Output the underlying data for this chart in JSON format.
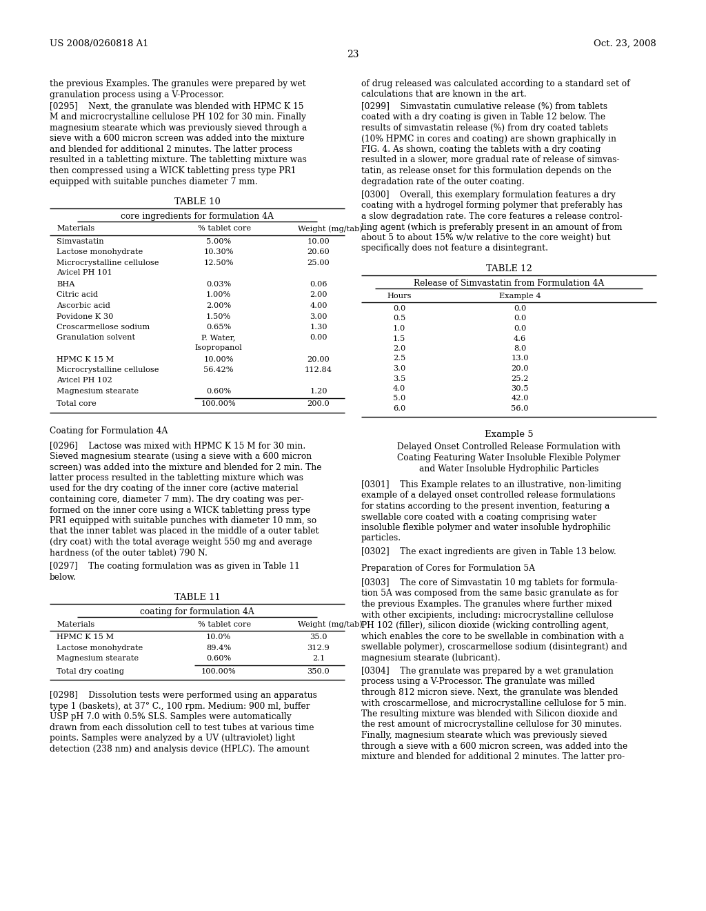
{
  "header_left": "US 2008/0260818 A1",
  "header_right": "Oct. 23, 2008",
  "page_number": "23",
  "background_color": "#ffffff",
  "text_color": "#000000",
  "left_column": {
    "intro_text": "the previous Examples. The granules were prepared by wet\ngranulation process using a V-Processor.",
    "para_0295": "[0295]    Next, the granulate was blended with HPMC K 15\nM and microcrystalline cellulose PH 102 for 30 min. Finally\nmagnesium stearate which was previously sieved through a\nsieve with a 600 micron screen was added into the mixture\nand blended for additional 2 minutes. The latter process\nresulted in a tabletting mixture. The tabletting mixture was\nthen compressed using a WICK tabletting press type PR1\nequipped with suitable punches diameter 7 mm.",
    "table10_title": "TABLE 10",
    "table10_subtitle": "core ingredients for formulation 4A",
    "table10_headers": [
      "Materials",
      "% tablet core",
      "Weight (mg/tab)"
    ],
    "table10_rows": [
      [
        "Simvastatin",
        "5.00%",
        "10.00"
      ],
      [
        "Lactose monohydrate",
        "10.30%",
        "20.60"
      ],
      [
        "Microcrystalline cellulose\nAvicel PH 101",
        "12.50%",
        "25.00"
      ],
      [
        "BHA",
        "0.03%",
        "0.06"
      ],
      [
        "Citric acid",
        "1.00%",
        "2.00"
      ],
      [
        "Ascorbic acid",
        "2.00%",
        "4.00"
      ],
      [
        "Povidone K 30",
        "1.50%",
        "3.00"
      ],
      [
        "Croscarmellose sodium",
        "0.65%",
        "1.30"
      ],
      [
        "Granulation solvent",
        "P. Water,\nIsopropanol",
        "0.00"
      ],
      [
        "HPMC K 15 M",
        "10.00%",
        "20.00"
      ],
      [
        "Microcrystalline cellulose\nAvicel PH 102",
        "56.42%",
        "112.84"
      ],
      [
        "Magnesium stearate",
        "0.60%",
        "1.20"
      ],
      [
        "Total core",
        "100.00%",
        "200.0"
      ]
    ],
    "coating_header": "Coating for Formulation 4A",
    "para_0296": "[0296]    Lactose was mixed with HPMC K 15 M for 30 min.\nSieved magnesium stearate (using a sieve with a 600 micron\nscreen) was added into the mixture and blended for 2 min. The\nlatter process resulted in the tabletting mixture which was\nused for the dry coating of the inner core (active material\ncontaining core, diameter 7 mm). The dry coating was per-\nformed on the inner core using a WICK tabletting press type\nPR1 equipped with suitable punches with diameter 10 mm, so\nthat the inner tablet was placed in the middle of a outer tablet\n(dry coat) with the total average weight 550 mg and average\nhardness (of the outer tablet) 790 N.",
    "para_0297": "[0297]    The coating formulation was as given in Table 11\nbelow.",
    "table11_title": "TABLE 11",
    "table11_subtitle": "coating for formulation 4A",
    "table11_headers": [
      "Materials",
      "% tablet core",
      "Weight (mg/tab)"
    ],
    "table11_rows": [
      [
        "HPMC K 15 M",
        "10.0%",
        "35.0"
      ],
      [
        "Lactose monohydrate",
        "89.4%",
        "312.9"
      ],
      [
        "Magnesium stearate",
        "0.60%",
        "2.1"
      ],
      [
        "Total dry coating",
        "100.00%",
        "350.0"
      ]
    ],
    "para_0298": "[0298]    Dissolution tests were performed using an apparatus\ntype 1 (baskets), at 37° C., 100 rpm. Medium: 900 ml, buffer\nUSP pH 7.0 with 0.5% SLS. Samples were automatically\ndrawn from each dissolution cell to test tubes at various time\npoints. Samples were analyzed by a UV (ultraviolet) light\ndetection (238 nm) and analysis device (HPLC). The amount"
  },
  "right_column": {
    "para_right_intro": "of drug released was calculated according to a standard set of\ncalculations that are known in the art.",
    "para_0299": "[0299]    Simvastatin cumulative release (%) from tablets\ncoated with a dry coating is given in Table 12 below. The\nresults of simvastatin release (%) from dry coated tablets\n(10% HPMC in cores and coating) are shown graphically in\nFIG. 4. As shown, coating the tablets with a dry coating\nresulted in a slower, more gradual rate of release of simvas-\ntatin, as release onset for this formulation depends on the\ndegradation rate of the outer coating.",
    "para_0300": "[0300]    Overall, this exemplary formulation features a dry\ncoating with a hydrogel forming polymer that preferably has\na slow degradation rate. The core features a release control-\nling agent (which is preferably present in an amount of from\nabout 5 to about 15% w/w relative to the core weight) but\nspecifically does not feature a disintegrant.",
    "table12_title": "TABLE 12",
    "table12_subtitle": "Release of Simvastatin from Formulation 4A",
    "table12_headers": [
      "Hours",
      "Example 4"
    ],
    "table12_rows": [
      [
        "0.0",
        "0.0"
      ],
      [
        "0.5",
        "0.0"
      ],
      [
        "1.0",
        "0.0"
      ],
      [
        "1.5",
        "4.6"
      ],
      [
        "2.0",
        "8.0"
      ],
      [
        "2.5",
        "13.0"
      ],
      [
        "3.0",
        "20.0"
      ],
      [
        "3.5",
        "25.2"
      ],
      [
        "4.0",
        "30.5"
      ],
      [
        "5.0",
        "42.0"
      ],
      [
        "6.0",
        "56.0"
      ]
    ],
    "example5_header": "Example 5",
    "example5_title": "Delayed Onset Controlled Release Formulation with\nCoating Featuring Water Insoluble Flexible Polymer\nand Water Insoluble Hydrophilic Particles",
    "para_0301": "[0301]    This Example relates to an illustrative, non-limiting\nexample of a delayed onset controlled release formulations\nfor statins according to the present invention, featuring a\nswellable core coated with a coating comprising water\ninsoluble flexible polymer and water insoluble hydrophilic\nparticles.",
    "para_0302": "[0302]    The exact ingredients are given in Table 13 below.",
    "prep_header": "Preparation of Cores for Formulation 5A",
    "para_0303": "[0303]    The core of Simvastatin 10 mg tablets for formula-\ntion 5A was composed from the same basic granulate as for\nthe previous Examples. The granules where further mixed\nwith other excipients, including: microcrystalline cellulose\nPH 102 (filler), silicon dioxide (wicking controlling agent,\nwhich enables the core to be swellable in combination with a\nswellable polymer), croscarmellose sodium (disintegrant) and\nmagnesium stearate (lubricant).",
    "para_0304": "[0304]    The granulate was prepared by a wet granulation\nprocess using a V-Processor. The granulate was milled\nthrough 812 micron sieve. Next, the granulate was blended\nwith croscarmellose, and microcrystalline cellulose for 5 min.\nThe resulting mixture was blended with Silicon dioxide and\nthe rest amount of microcrystalline cellulose for 30 minutes.\nFinally, magnesium stearate which was previously sieved\nthrough a sieve with a 600 micron screen, was added into the\nmixture and blended for additional 2 minutes. The latter pro-"
  }
}
